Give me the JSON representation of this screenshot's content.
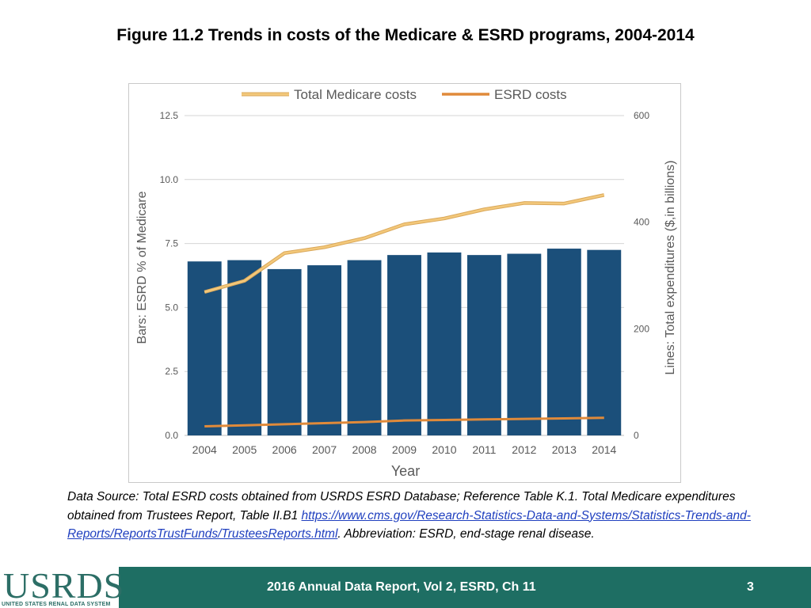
{
  "slide": {
    "title": "Figure 11.2 Trends in costs of the Medicare & ESRD programs, 2004-2014",
    "caption": {
      "text_before": "Data Source: Total ESRD costs obtained from USRDS ESRD Database; Reference Table K.1. Total Medicare expenditures obtained from Trustees Report, Table II.B1 ",
      "link": "https://www.cms.gov/Research-Statistics-Data-and-Systems/Statistics-Trends-and-Reports/ReportsTrustFunds/TrusteesReports.html",
      "text_after": ". Abbreviation: ESRD, end-stage renal disease."
    },
    "footer": {
      "logo_text": "USRDS",
      "logo_subtext": "UNITED STATES RENAL DATA SYSTEM",
      "report_text": "2016 Annual Data Report, Vol 2, ESRD, Ch 11",
      "page_number": "3"
    }
  },
  "chart_data": {
    "type": "bar+line",
    "categories": [
      "2004",
      "2005",
      "2006",
      "2007",
      "2008",
      "2009",
      "2010",
      "2011",
      "2012",
      "2013",
      "2014"
    ],
    "bars": {
      "name": "ESRD % of Medicare",
      "values": [
        6.8,
        6.85,
        6.5,
        6.65,
        6.85,
        7.05,
        7.15,
        7.05,
        7.1,
        7.3,
        7.25
      ],
      "color": "#1b4f7a"
    },
    "series": [
      {
        "name": "Total Medicare costs",
        "axis": "right",
        "values": [
          269,
          290,
          342,
          353,
          370,
          396,
          407,
          424,
          436,
          435,
          451
        ],
        "color": "#f3c87a"
      },
      {
        "name": "ESRD costs",
        "axis": "right",
        "values": [
          17,
          19,
          21,
          23,
          25,
          28,
          29,
          30,
          31,
          32,
          33
        ],
        "color": "#e08a3a"
      }
    ],
    "ylabel_left": "Bars: ESRD % of Medicare",
    "ylabel_right": "Lines: Total expenditures ($,in billions)",
    "xlabel": "Year",
    "ylim_left": [
      0,
      12.5
    ],
    "yticks_left": [
      "0.0",
      "2.5",
      "5.0",
      "7.5",
      "10.0",
      "12.5"
    ],
    "ylim_right": [
      0,
      600
    ],
    "yticks_right": [
      "0",
      "200",
      "400",
      "600"
    ],
    "legend_position": "top-center",
    "grid": true
  }
}
